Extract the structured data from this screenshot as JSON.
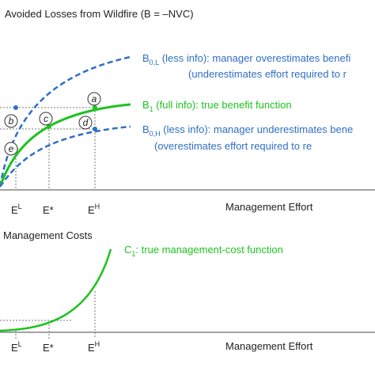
{
  "top_panel": {
    "title": "Avoided Losses from Wildfire (B = –NVC)",
    "curves": [
      {
        "symbol": "B",
        "subscript": "0,L",
        "text": " (less info): manager overestimates benefi",
        "note": "(underestimates effort required to r"
      },
      {
        "symbol": "B",
        "subscript": "1",
        "text": " (full info): true benefit function"
      },
      {
        "symbol": "B",
        "subscript": "0,H",
        "text": " (less info): manager underestimates bene",
        "note": "(overestimates effort required to re"
      }
    ],
    "point_labels": [
      "a",
      "b",
      "c",
      "d",
      "e"
    ],
    "x_labels": [
      {
        "base": "E",
        "sup": "L"
      },
      {
        "base": "E*"
      },
      {
        "base": "E",
        "sup": "H"
      }
    ],
    "x_axis_label": "Management Effort"
  },
  "bottom_panel": {
    "title": "Management Costs",
    "curve": {
      "symbol": "C",
      "subscript": "1",
      "text": ": true management-cost function"
    },
    "x_labels": [
      {
        "base": "E",
        "sup": "L"
      },
      {
        "base": "E*"
      },
      {
        "base": "E",
        "sup": "H"
      }
    ],
    "x_axis_label": "Management Effort"
  }
}
